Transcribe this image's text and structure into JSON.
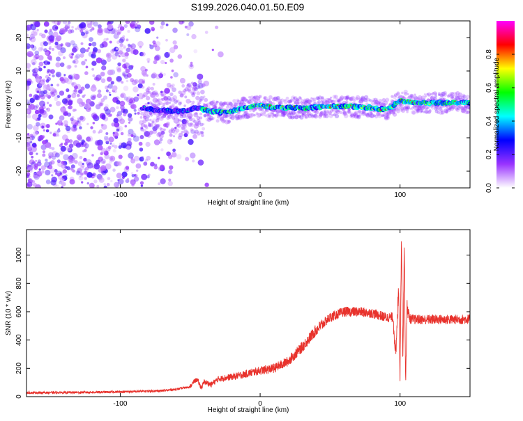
{
  "title": "S199.2026.040.01.50.E09",
  "chart_data": [
    {
      "type": "heatmap",
      "xlabel": "Height of straight line (km)",
      "ylabel": "Frequency (Hz)",
      "xlim": [
        -167,
        150
      ],
      "ylim": [
        -25,
        25
      ],
      "xticks": [
        -100,
        0,
        100
      ],
      "xtick_labels": [
        "-100",
        "0",
        "100"
      ],
      "yticks": [
        -20,
        -10,
        0,
        10,
        20
      ],
      "ytick_labels": [
        "-20",
        "-10",
        "0",
        "10",
        "20"
      ],
      "colorbar": {
        "label": "Normalized spectral amplitude",
        "range": [
          0,
          1
        ],
        "ticks": [
          0.0,
          0.2,
          0.4,
          0.6,
          0.8
        ],
        "tick_labels": [
          "0.0",
          "0.2",
          "0.4",
          "0.6",
          "0.8"
        ],
        "colormap": [
          "#ffffff",
          "#9933ff",
          "#0000ff",
          "#00ffff",
          "#00ff00",
          "#ffff00",
          "#ff0000",
          "#ff00ff"
        ]
      },
      "ridge": {
        "x": [
          -85,
          -70,
          -55,
          -45,
          -35,
          -25,
          -15,
          -5,
          0,
          10,
          30,
          60,
          80,
          90,
          95,
          100,
          110,
          130,
          150
        ],
        "freq": [
          -1,
          -2,
          -2,
          -1,
          -2,
          -2.5,
          -1.5,
          -0.5,
          -0.3,
          -1,
          -1,
          -0.5,
          -1,
          -1.5,
          -0.5,
          1,
          0.5,
          0.5,
          0.5
        ]
      },
      "grid": false
    },
    {
      "type": "line",
      "xlabel": "Height of straight line (km)",
      "ylabel": "SNR (10 * v/v)",
      "xlim": [
        -167,
        150
      ],
      "ylim": [
        0,
        1180
      ],
      "xticks": [
        -100,
        0,
        100
      ],
      "xtick_labels": [
        "-100",
        "0",
        "100"
      ],
      "yticks": [
        0,
        200,
        400,
        600,
        800,
        1000
      ],
      "ytick_labels": [
        "0",
        "200",
        "400",
        "600",
        "800",
        "1000"
      ],
      "color": "#e8322c",
      "series": [
        {
          "x": [
            -167,
            -150,
            -130,
            -110,
            -90,
            -70,
            -60,
            -50,
            -47,
            -45,
            -42,
            -40,
            -35,
            -30,
            -20,
            -10,
            0,
            10,
            20,
            30,
            40,
            50,
            60,
            70,
            80,
            90,
            95,
            97,
            99,
            100,
            101,
            102,
            103,
            104,
            105,
            107,
            110,
            120,
            130,
            140,
            150
          ],
          "values": [
            28,
            28,
            30,
            32,
            36,
            42,
            52,
            70,
            110,
            120,
            60,
            105,
            85,
            125,
            140,
            160,
            185,
            200,
            250,
            350,
            470,
            560,
            600,
            600,
            590,
            560,
            560,
            280,
            800,
            160,
            1150,
            260,
            1080,
            90,
            640,
            550,
            545,
            545,
            545,
            545,
            548
          ]
        }
      ],
      "grid": false
    }
  ]
}
